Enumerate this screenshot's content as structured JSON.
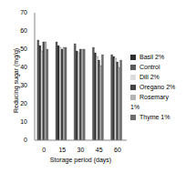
{
  "chart_data": {
    "type": "bar",
    "x_label": "Storage period (days)",
    "y_label": "Reducing sugar (mg/g)",
    "categories": [
      "0",
      "15",
      "30",
      "45",
      "60"
    ],
    "series": [
      {
        "name": "Control",
        "color": "#5a5a5a",
        "values": [
          55,
          54,
          53,
          51,
          47
        ]
      },
      {
        "name": "Basil 2%",
        "color": "#2e2e2e",
        "values": [
          52,
          52,
          49,
          48,
          46
        ]
      },
      {
        "name": "Dill 2%",
        "color": "#dcdcdc",
        "values": [
          49,
          51,
          48,
          46,
          45
        ]
      },
      {
        "name": "Oregano 2%",
        "color": "#444444",
        "values": [
          54,
          50,
          50,
          44,
          43
        ]
      },
      {
        "name": "Rosemary 1%",
        "color": "#b4b4b4",
        "values": [
          54,
          51,
          50,
          41,
          40
        ]
      },
      {
        "name": "Thyme 1%",
        "color": "#6e6e6e",
        "values": [
          50,
          51,
          50,
          47,
          44
        ]
      }
    ],
    "ylim": [
      0,
      70
    ],
    "yticks": [
      0,
      10,
      20,
      30,
      40,
      50,
      60,
      70
    ],
    "grid": false,
    "legend": "right"
  }
}
